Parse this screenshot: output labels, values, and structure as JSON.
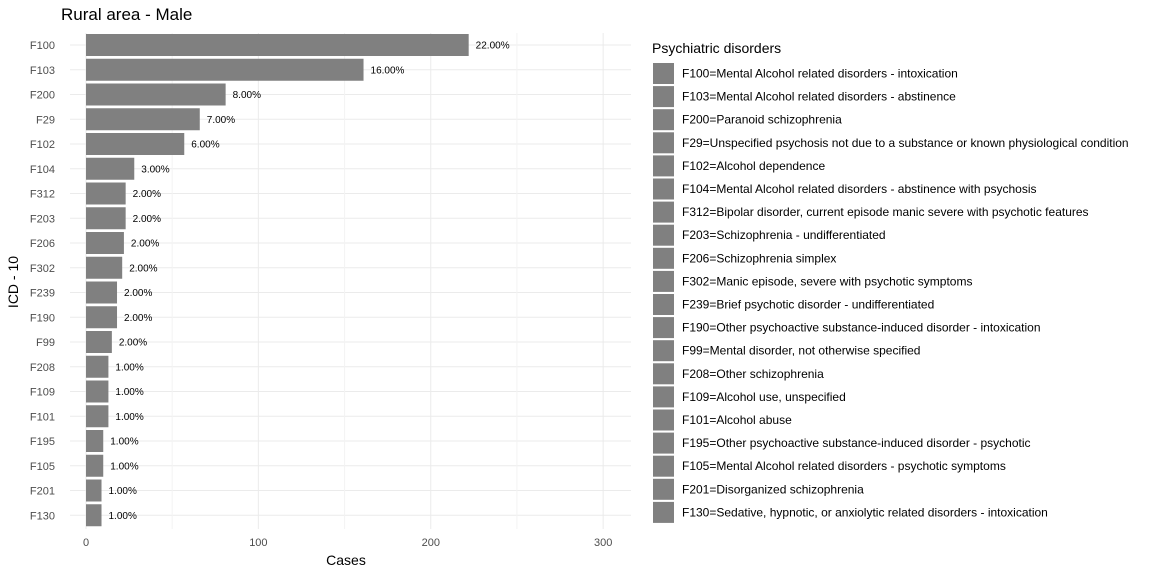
{
  "chart_data": {
    "type": "bar",
    "orientation": "horizontal",
    "title": "Rural area - Male",
    "xlabel": "Cases",
    "ylabel": "ICD - 10",
    "xlim": [
      0,
      315
    ],
    "xticks": [
      0,
      100,
      200,
      300
    ],
    "grid": true,
    "bar_color": "#808080",
    "categories": [
      "F100",
      "F103",
      "F200",
      "F29",
      "F102",
      "F104",
      "F312",
      "F203",
      "F206",
      "F302",
      "F239",
      "F190",
      "F99",
      "F208",
      "F109",
      "F101",
      "F195",
      "F105",
      "F201",
      "F130"
    ],
    "values": [
      222,
      161,
      81,
      66,
      57,
      28,
      23,
      23,
      22,
      21,
      18,
      18,
      15,
      13,
      13,
      13,
      10,
      10,
      9,
      9
    ],
    "labels": [
      "22.00%",
      "16.00%",
      "8.00%",
      "7.00%",
      "6.00%",
      "3.00%",
      "2.00%",
      "2.00%",
      "2.00%",
      "2.00%",
      "2.00%",
      "2.00%",
      "2.00%",
      "1.00%",
      "1.00%",
      "1.00%",
      "1.00%",
      "1.00%",
      "1.00%",
      "1.00%"
    ],
    "legend": {
      "title": "Psychiatric disorders",
      "placement": "right",
      "entries": [
        "F100=Mental Alcohol related disorders - intoxication",
        "F103=Mental Alcohol related disorders - abstinence",
        "F200=Paranoid schizophrenia",
        "F29=Unspecified psychosis not due to a substance or known physiological condition",
        "F102=Alcohol dependence",
        "F104=Mental Alcohol related disorders - abstinence with psychosis",
        "F312=Bipolar disorder, current episode manic severe with psychotic features",
        "F203=Schizophrenia - undifferentiated",
        "F206=Schizophrenia simplex",
        "F302=Manic episode, severe with psychotic symptoms",
        "F239=Brief psychotic disorder - undifferentiated",
        "F190=Other psychoactive substance-induced disorder - intoxication",
        "F99=Mental disorder, not otherwise specified",
        "F208=Other schizophrenia",
        "F109=Alcohol use, unspecified",
        "F101=Alcohol abuse",
        "F195=Other psychoactive substance-induced disorder - psychotic",
        "F105=Mental Alcohol related disorders - psychotic symptoms",
        "F201=Disorganized schizophrenia",
        "F130=Sedative, hypnotic, or anxiolytic related disorders - intoxication"
      ]
    }
  }
}
